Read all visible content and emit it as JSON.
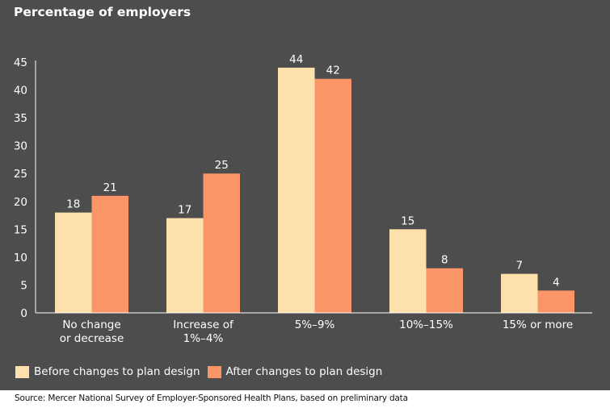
{
  "chart_data": {
    "type": "bar",
    "title": "Percentage of employers",
    "categories": [
      [
        "No change",
        "or decrease"
      ],
      [
        "Increase of",
        "1%–4%"
      ],
      [
        "5%–9%"
      ],
      [
        "10%–15%"
      ],
      [
        "15% or more"
      ]
    ],
    "series": [
      {
        "name": "Before changes to plan design",
        "color": "#fde0ac",
        "values": [
          18,
          17,
          44,
          15,
          7
        ]
      },
      {
        "name": "After changes to plan design",
        "color": "#fb9466",
        "values": [
          21,
          25,
          42,
          8,
          4
        ]
      }
    ],
    "ylim": [
      0,
      45
    ],
    "yticks": [
      0,
      5,
      10,
      15,
      20,
      25,
      30,
      35,
      40,
      45
    ],
    "xlabel": "",
    "ylabel": "",
    "grid": false,
    "legend_position": "bottom-left",
    "source": "Source: Mercer National Survey of Employer-Sponsored Health Plans, based on preliminary data"
  },
  "colors": {
    "background": "#4d4d4d",
    "text": "#ffffff",
    "axis": "#ffffff"
  }
}
